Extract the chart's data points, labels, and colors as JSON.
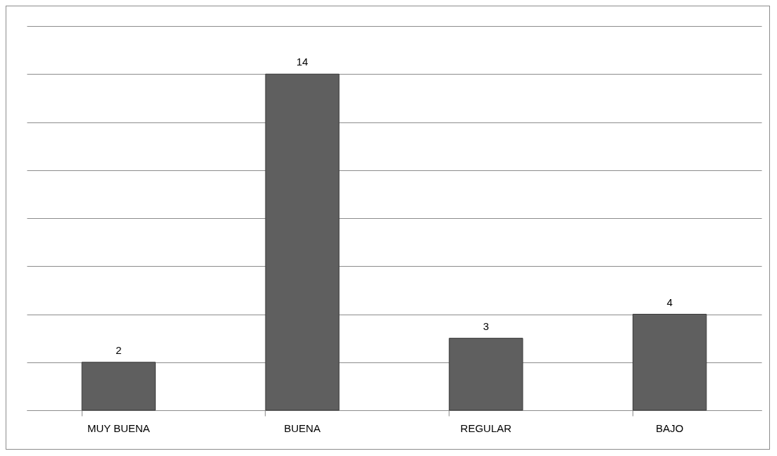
{
  "chart_data": {
    "type": "bar",
    "categories": [
      "MUY BUENA",
      "BUENA",
      "REGULAR",
      "BAJO"
    ],
    "values": [
      2,
      14,
      3,
      4
    ],
    "color": "#5f5f5f",
    "ylim": [
      0,
      16
    ],
    "yticks": [
      {
        "value": 0,
        "label": null
      },
      {
        "value": 2,
        "label": null
      },
      {
        "value": 4,
        "label": null
      },
      {
        "value": 6,
        "label": null
      },
      {
        "value": 8,
        "label": null
      },
      {
        "value": 10,
        "label": null
      },
      {
        "value": 12,
        "label": null
      },
      {
        "value": 14,
        "label": null
      },
      {
        "value": 16,
        "label": null
      }
    ],
    "tick_labels": "x",
    "grid": "y",
    "data_labels": true
  }
}
